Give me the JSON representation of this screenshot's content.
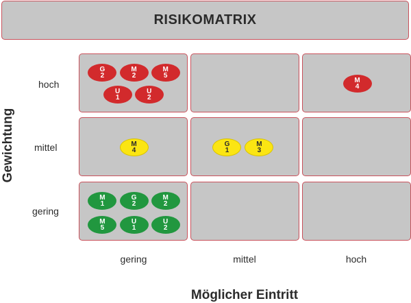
{
  "title": "RISIKOMATRIX",
  "y_axis_title": "Gewichtung",
  "x_axis_title": "Möglicher Eintritt",
  "rows": [
    {
      "label": "hoch"
    },
    {
      "label": "mittel"
    },
    {
      "label": "gering"
    }
  ],
  "cols": [
    {
      "label": "gering"
    },
    {
      "label": "mittel"
    },
    {
      "label": "hoch"
    }
  ],
  "colors": {
    "high": "#d22a2c",
    "medium": "#fbe513",
    "low": "#21973f",
    "cell_fill": "#c6c6c6",
    "cell_border": "#c9505a"
  },
  "cells": [
    {
      "row": 0,
      "col": 0,
      "level": "red",
      "items": [
        {
          "letter": "G",
          "num": "2"
        },
        {
          "letter": "M",
          "num": "2"
        },
        {
          "letter": "M",
          "num": "5"
        },
        {
          "letter": "U",
          "num": "1"
        },
        {
          "letter": "U",
          "num": "2"
        }
      ]
    },
    {
      "row": 0,
      "col": 1,
      "level": "red",
      "items": []
    },
    {
      "row": 0,
      "col": 2,
      "level": "red",
      "items": [
        {
          "letter": "M",
          "num": "4"
        }
      ]
    },
    {
      "row": 1,
      "col": 0,
      "level": "yellow",
      "items": [
        {
          "letter": "M",
          "num": "4"
        }
      ]
    },
    {
      "row": 1,
      "col": 1,
      "level": "yellow",
      "items": [
        {
          "letter": "G",
          "num": "1"
        },
        {
          "letter": "M",
          "num": "3"
        }
      ]
    },
    {
      "row": 1,
      "col": 2,
      "level": "yellow",
      "items": []
    },
    {
      "row": 2,
      "col": 0,
      "level": "green",
      "items": [
        {
          "letter": "M",
          "num": "1"
        },
        {
          "letter": "G",
          "num": "2"
        },
        {
          "letter": "M",
          "num": "2"
        },
        {
          "letter": "M",
          "num": "5"
        },
        {
          "letter": "U",
          "num": "1"
        },
        {
          "letter": "U",
          "num": "2"
        }
      ]
    },
    {
      "row": 2,
      "col": 1,
      "level": "green",
      "items": []
    },
    {
      "row": 2,
      "col": 2,
      "level": "green",
      "items": []
    }
  ]
}
